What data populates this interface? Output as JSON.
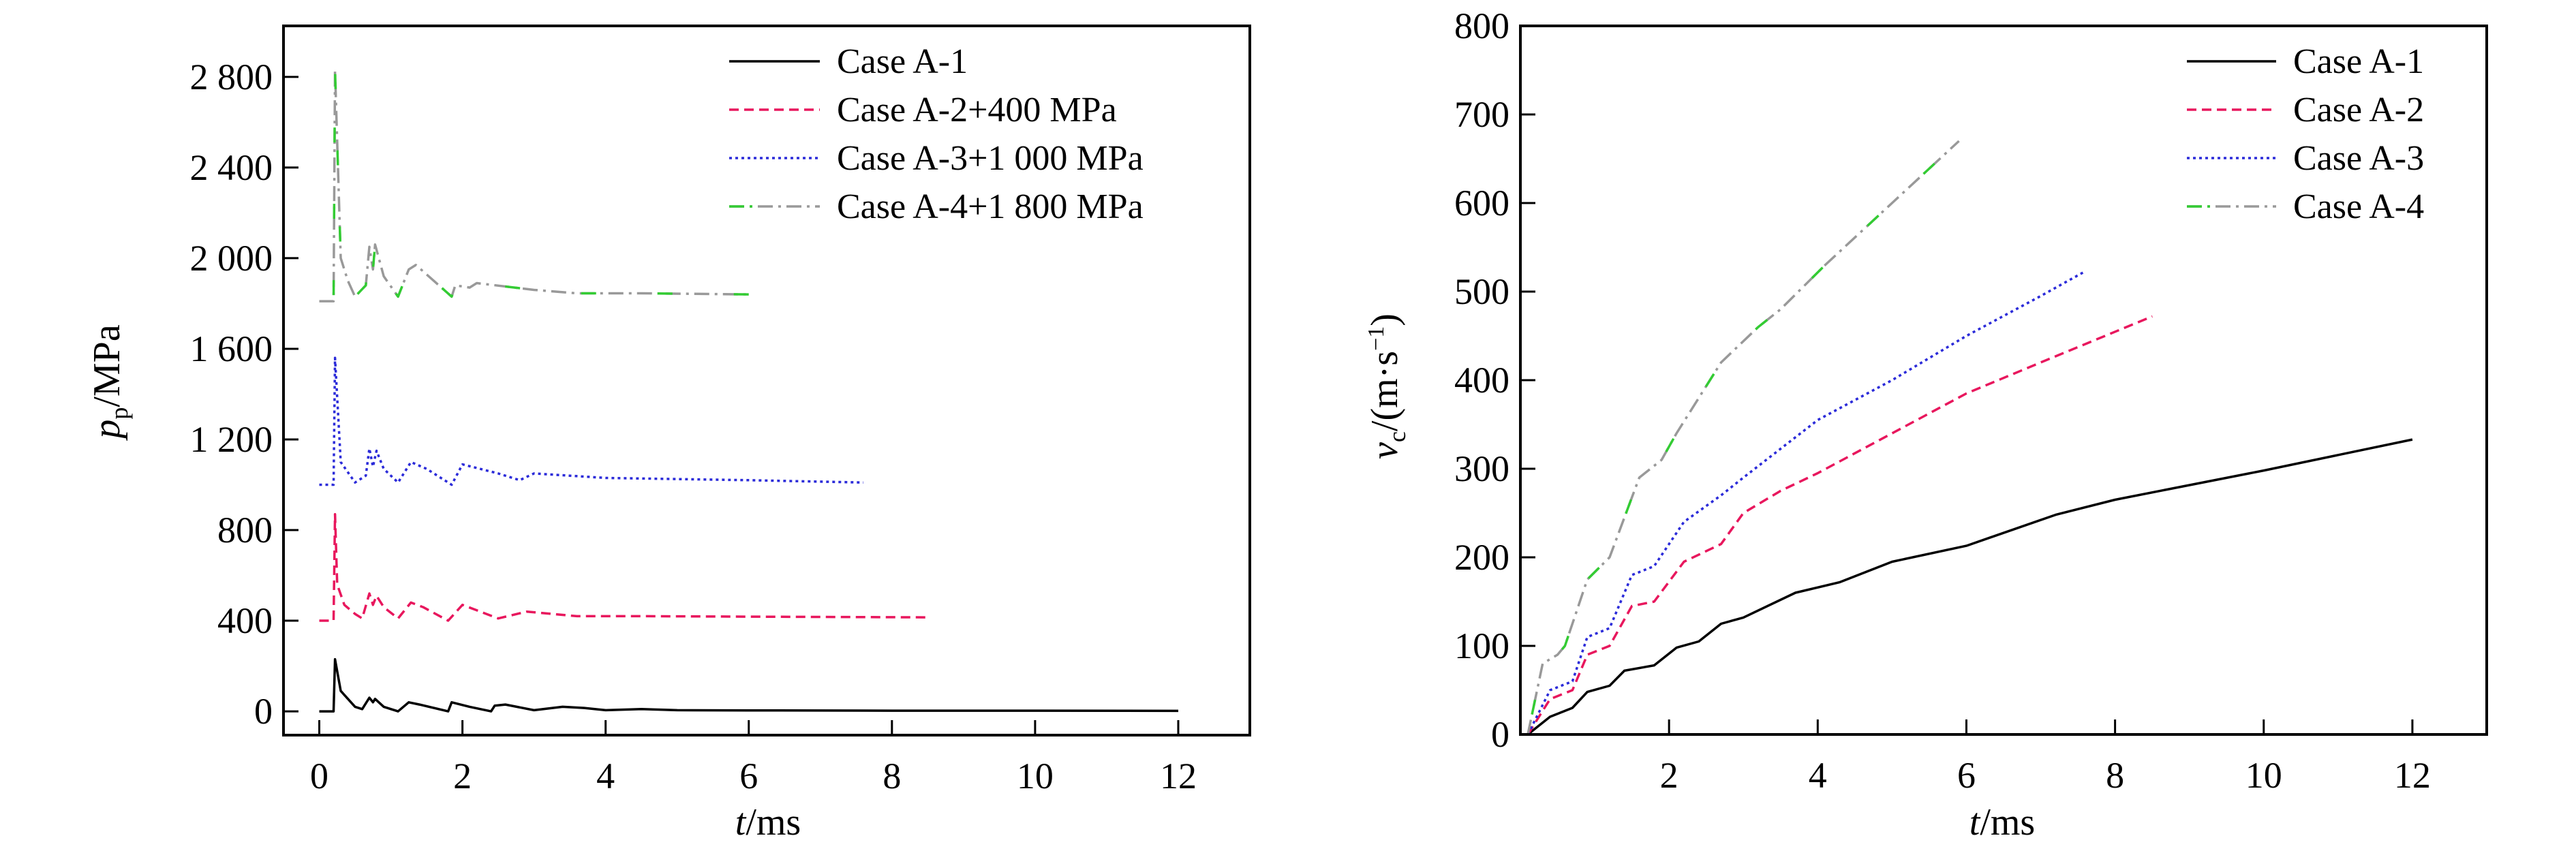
{
  "chart_data": [
    {
      "type": "line",
      "xlabel": {
        "symbol": "t",
        "unit": "/ms"
      },
      "ylabel": {
        "symbol": "p",
        "subscript": "p",
        "unit": "/MPa"
      },
      "xlim": [
        -0.5,
        13
      ],
      "ylim": [
        -105,
        3025
      ],
      "xticks": [
        0,
        2,
        4,
        6,
        8,
        10,
        12
      ],
      "xtick_labels": [
        "0",
        "2",
        "4",
        "6",
        "8",
        "10",
        "12"
      ],
      "yticks": [
        0,
        400,
        800,
        1200,
        1600,
        2000,
        2400,
        2800
      ],
      "ytick_labels": [
        "0",
        "400",
        "800",
        "1 200",
        "1 600",
        "2 000",
        "2 400",
        "2 800"
      ],
      "grid": false,
      "legend_position": "top-right",
      "series": [
        {
          "name": "Case A-1",
          "color": "#000000",
          "style": "solid",
          "x": [
            0,
            0.2,
            0.22,
            0.3,
            0.5,
            0.6,
            0.7,
            0.75,
            0.78,
            0.9,
            1.1,
            1.25,
            1.4,
            1.8,
            1.85,
            2.1,
            2.4,
            2.45,
            2.6,
            3.0,
            3.4,
            3.7,
            4.0,
            4.5,
            5.0,
            6,
            8,
            10,
            12
          ],
          "y": [
            0,
            0,
            230,
            90,
            20,
            10,
            60,
            40,
            55,
            20,
            0,
            40,
            30,
            0,
            40,
            20,
            0,
            25,
            30,
            5,
            20,
            15,
            5,
            10,
            5,
            4,
            3,
            3,
            2
          ]
        },
        {
          "name": "Case A-2+400 MPa",
          "color": "#e8175d",
          "style": "dashed",
          "x": [
            0,
            0.2,
            0.22,
            0.25,
            0.35,
            0.5,
            0.6,
            0.7,
            0.75,
            0.8,
            0.9,
            1.1,
            1.28,
            1.45,
            1.8,
            2.0,
            2.5,
            2.9,
            3.6,
            4.5,
            6,
            8.5
          ],
          "y": [
            400,
            400,
            870,
            560,
            470,
            430,
            410,
            520,
            470,
            510,
            460,
            410,
            480,
            460,
            400,
            470,
            410,
            440,
            420,
            420,
            418,
            415
          ]
        },
        {
          "name": "Case A-3+1 000 MPa",
          "color": "#2b2bd9",
          "style": "dotted",
          "x": [
            0,
            0.2,
            0.22,
            0.3,
            0.5,
            0.65,
            0.7,
            0.75,
            0.8,
            0.9,
            1.1,
            1.28,
            1.5,
            1.85,
            2.0,
            2.5,
            2.8,
            3.0,
            4,
            6,
            7.6
          ],
          "y": [
            1000,
            1000,
            1560,
            1100,
            1010,
            1040,
            1160,
            1080,
            1150,
            1070,
            1010,
            1100,
            1070,
            1000,
            1090,
            1050,
            1020,
            1050,
            1030,
            1020,
            1010
          ]
        },
        {
          "name": "Case A-4+1 800 MPa",
          "color": "#999999",
          "accent_color": "#33cc33",
          "style": "dash-dot",
          "x": [
            0,
            0.2,
            0.22,
            0.3,
            0.4,
            0.5,
            0.65,
            0.7,
            0.75,
            0.78,
            0.9,
            1.1,
            1.25,
            1.35,
            1.6,
            1.85,
            1.9,
            2.1,
            2.2,
            3.0,
            3.6,
            4.5,
            6
          ],
          "y": [
            1810,
            1810,
            2830,
            2000,
            1900,
            1830,
            1880,
            2050,
            1950,
            2060,
            1920,
            1830,
            1950,
            1970,
            1900,
            1830,
            1880,
            1870,
            1890,
            1860,
            1845,
            1845,
            1840
          ]
        }
      ]
    },
    {
      "type": "line",
      "xlabel": {
        "symbol": "t",
        "unit": "/ms"
      },
      "ylabel": {
        "symbol": "v",
        "subscript": "c",
        "unit": "/(m·s",
        "superscript": "−1",
        "close": ")"
      },
      "xlim": [
        0,
        13
      ],
      "ylim": [
        0,
        800
      ],
      "xticks": [
        2,
        4,
        6,
        8,
        10,
        12
      ],
      "xtick_labels": [
        "2",
        "4",
        "6",
        "8",
        "10",
        "12"
      ],
      "yticks": [
        0,
        100,
        200,
        300,
        400,
        500,
        600,
        700,
        800
      ],
      "ytick_labels": [
        "0",
        "100",
        "200",
        "300",
        "400",
        "500",
        "600",
        "700",
        "800"
      ],
      "grid": false,
      "legend_position": "top-right",
      "series": [
        {
          "name": "Case A-1",
          "color": "#000000",
          "style": "solid",
          "x": [
            0.1,
            0.4,
            0.7,
            0.9,
            1.2,
            1.4,
            1.8,
            2.1,
            2.4,
            2.7,
            3.0,
            3.7,
            4.3,
            5,
            6,
            7.2,
            8,
            10,
            12
          ],
          "y": [
            0,
            20,
            30,
            48,
            55,
            72,
            78,
            98,
            105,
            125,
            132,
            160,
            172,
            195,
            213,
            248,
            265,
            298,
            333
          ]
        },
        {
          "name": "Case A-2",
          "color": "#e8175d",
          "style": "dashed",
          "x": [
            0.1,
            0.4,
            0.7,
            0.9,
            1.2,
            1.5,
            1.8,
            2.2,
            2.7,
            3.0,
            3.5,
            4.0,
            5,
            6,
            7,
            8.5
          ],
          "y": [
            0,
            40,
            50,
            90,
            100,
            145,
            150,
            195,
            215,
            250,
            275,
            295,
            340,
            385,
            420,
            472
          ]
        },
        {
          "name": "Case A-3",
          "color": "#2b2bd9",
          "style": "dotted",
          "x": [
            0.1,
            0.4,
            0.7,
            0.9,
            1.2,
            1.5,
            1.8,
            2.2,
            2.7,
            3.0,
            4.0,
            5,
            6,
            7,
            7.6
          ],
          "y": [
            0,
            50,
            60,
            110,
            120,
            180,
            190,
            240,
            270,
            290,
            355,
            400,
            450,
            495,
            523
          ]
        },
        {
          "name": "Case A-4",
          "color": "#999999",
          "accent_color": "#33cc33",
          "style": "dash-dot",
          "x": [
            0.1,
            0.3,
            0.5,
            0.6,
            0.9,
            1.2,
            1.6,
            1.9,
            2.1,
            2.7,
            3.2,
            3.5,
            4.1,
            5,
            5.9
          ],
          "y": [
            0,
            80,
            90,
            100,
            175,
            200,
            290,
            310,
            340,
            420,
            460,
            480,
            530,
            600,
            670
          ]
        }
      ]
    }
  ]
}
